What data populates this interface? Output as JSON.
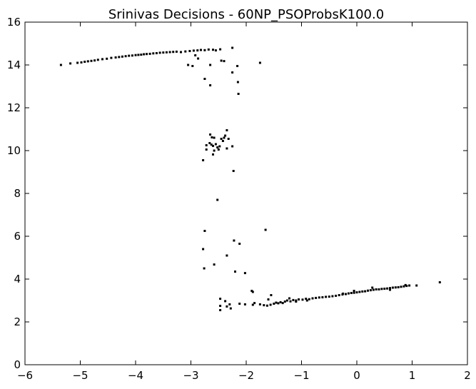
{
  "chart_data": {
    "type": "scatter",
    "title": "Srinivas Decisions - 60NP_PSOProbsK100.0",
    "xlabel": "",
    "ylabel": "",
    "xlim": [
      -6,
      2
    ],
    "ylim": [
      0,
      16
    ],
    "grid": false,
    "legend": false,
    "x_ticks": [
      -6,
      -5,
      -4,
      -3,
      -2,
      -1,
      0,
      1,
      2
    ],
    "x_tick_labels": [
      "−6",
      "−5",
      "−4",
      "−3",
      "−2",
      "−1",
      "0",
      "1",
      "2"
    ],
    "y_ticks": [
      0,
      2,
      4,
      6,
      8,
      10,
      12,
      14,
      16
    ],
    "y_tick_labels": [
      "0",
      "2",
      "4",
      "6",
      "8",
      "10",
      "12",
      "14",
      "16"
    ],
    "marker_color": "#000000",
    "series": [
      {
        "name": "decisions",
        "points": [
          [
            -5.35,
            14.0
          ],
          [
            -5.18,
            14.07
          ],
          [
            -5.05,
            14.1
          ],
          [
            -4.98,
            14.12
          ],
          [
            -4.92,
            14.15
          ],
          [
            -4.86,
            14.17
          ],
          [
            -4.8,
            14.19
          ],
          [
            -4.74,
            14.21
          ],
          [
            -4.68,
            14.24
          ],
          [
            -4.6,
            14.27
          ],
          [
            -4.52,
            14.29
          ],
          [
            -4.44,
            14.33
          ],
          [
            -4.36,
            14.35
          ],
          [
            -4.3,
            14.37
          ],
          [
            -4.24,
            14.39
          ],
          [
            -4.18,
            14.41
          ],
          [
            -4.12,
            14.43
          ],
          [
            -4.06,
            14.44
          ],
          [
            -4.0,
            14.46
          ],
          [
            -3.95,
            14.47
          ],
          [
            -3.9,
            14.48
          ],
          [
            -3.85,
            14.5
          ],
          [
            -3.8,
            14.51
          ],
          [
            -3.74,
            14.52
          ],
          [
            -3.68,
            14.54
          ],
          [
            -3.62,
            14.55
          ],
          [
            -3.56,
            14.57
          ],
          [
            -3.5,
            14.58
          ],
          [
            -3.44,
            14.59
          ],
          [
            -3.38,
            14.6
          ],
          [
            -3.32,
            14.61
          ],
          [
            -3.26,
            14.62
          ],
          [
            -3.18,
            14.6
          ],
          [
            -3.1,
            14.63
          ],
          [
            -3.02,
            14.65
          ],
          [
            -2.95,
            14.67
          ],
          [
            -2.88,
            14.68
          ],
          [
            -2.82,
            14.7
          ],
          [
            -2.75,
            14.69
          ],
          [
            -2.68,
            14.72
          ],
          [
            -2.6,
            14.71
          ],
          [
            -2.55,
            14.68
          ],
          [
            -2.47,
            14.73
          ],
          [
            -2.25,
            14.8
          ],
          [
            -2.92,
            14.45
          ],
          [
            -2.87,
            14.3
          ],
          [
            -2.45,
            14.2
          ],
          [
            -2.4,
            14.18
          ],
          [
            -2.65,
            14.0
          ],
          [
            -2.16,
            13.95
          ],
          [
            -3.05,
            14.0
          ],
          [
            -2.97,
            13.95
          ],
          [
            -1.75,
            14.1
          ],
          [
            -2.25,
            13.65
          ],
          [
            -2.75,
            13.35
          ],
          [
            -2.15,
            13.2
          ],
          [
            -2.65,
            13.05
          ],
          [
            -2.14,
            12.65
          ],
          [
            -2.65,
            10.75
          ],
          [
            -2.62,
            10.62
          ],
          [
            -2.58,
            10.6
          ],
          [
            -2.45,
            10.55
          ],
          [
            -2.4,
            10.6
          ],
          [
            -2.38,
            10.7
          ],
          [
            -2.35,
            10.95
          ],
          [
            -2.32,
            10.55
          ],
          [
            -2.72,
            10.25
          ],
          [
            -2.66,
            10.35
          ],
          [
            -2.63,
            10.28
          ],
          [
            -2.6,
            10.22
          ],
          [
            -2.55,
            10.3
          ],
          [
            -2.52,
            10.15
          ],
          [
            -2.5,
            10.05
          ],
          [
            -2.48,
            10.2
          ],
          [
            -2.72,
            10.05
          ],
          [
            -2.58,
            10.0
          ],
          [
            -2.42,
            10.45
          ],
          [
            -2.35,
            10.1
          ],
          [
            -2.25,
            10.2
          ],
          [
            -2.6,
            9.82
          ],
          [
            -2.78,
            9.55
          ],
          [
            -2.23,
            9.05
          ],
          [
            -2.52,
            7.7
          ],
          [
            -2.75,
            6.25
          ],
          [
            -1.65,
            6.3
          ],
          [
            -2.22,
            5.8
          ],
          [
            -2.12,
            5.65
          ],
          [
            -2.78,
            5.4
          ],
          [
            -2.35,
            5.1
          ],
          [
            -2.58,
            4.68
          ],
          [
            -2.76,
            4.5
          ],
          [
            -2.2,
            4.35
          ],
          [
            -2.02,
            4.28
          ],
          [
            -1.9,
            3.45
          ],
          [
            -1.88,
            3.4
          ],
          [
            -2.47,
            3.08
          ],
          [
            -2.38,
            2.97
          ],
          [
            -2.3,
            2.82
          ],
          [
            -2.47,
            2.75
          ],
          [
            -2.35,
            2.72
          ],
          [
            -2.28,
            2.63
          ],
          [
            -2.47,
            2.55
          ],
          [
            -2.12,
            2.85
          ],
          [
            -2.02,
            2.82
          ],
          [
            -1.88,
            2.8
          ],
          [
            -1.85,
            2.88
          ],
          [
            -1.75,
            2.82
          ],
          [
            -1.68,
            2.78
          ],
          [
            -1.62,
            2.76
          ],
          [
            -1.56,
            2.8
          ],
          [
            -1.5,
            2.85
          ],
          [
            -1.46,
            2.9
          ],
          [
            -1.42,
            2.87
          ],
          [
            -1.38,
            2.92
          ],
          [
            -1.34,
            2.88
          ],
          [
            -1.3,
            2.95
          ],
          [
            -1.26,
            3.0
          ],
          [
            -1.2,
            2.96
          ],
          [
            -1.15,
            3.02
          ],
          [
            -1.1,
            3.0
          ],
          [
            -1.05,
            3.05
          ],
          [
            -0.98,
            3.04
          ],
          [
            -0.92,
            3.08
          ],
          [
            -0.86,
            3.06
          ],
          [
            -0.8,
            3.1
          ],
          [
            -0.74,
            3.12
          ],
          [
            -0.68,
            3.14
          ],
          [
            -0.62,
            3.15
          ],
          [
            -0.56,
            3.17
          ],
          [
            -0.5,
            3.18
          ],
          [
            -0.44,
            3.2
          ],
          [
            -0.38,
            3.22
          ],
          [
            -0.32,
            3.25
          ],
          [
            -0.26,
            3.28
          ],
          [
            -0.2,
            3.3
          ],
          [
            -0.15,
            3.33
          ],
          [
            -0.1,
            3.35
          ],
          [
            -0.05,
            3.36
          ],
          [
            0.0,
            3.38
          ],
          [
            0.05,
            3.4
          ],
          [
            0.1,
            3.42
          ],
          [
            0.15,
            3.43
          ],
          [
            0.2,
            3.46
          ],
          [
            0.25,
            3.48
          ],
          [
            0.3,
            3.5
          ],
          [
            0.35,
            3.52
          ],
          [
            0.4,
            3.52
          ],
          [
            0.45,
            3.54
          ],
          [
            0.5,
            3.55
          ],
          [
            0.55,
            3.56
          ],
          [
            0.6,
            3.58
          ],
          [
            0.65,
            3.6
          ],
          [
            0.7,
            3.61
          ],
          [
            0.75,
            3.62
          ],
          [
            0.8,
            3.64
          ],
          [
            0.85,
            3.66
          ],
          [
            0.9,
            3.68
          ],
          [
            0.95,
            3.7
          ],
          [
            1.08,
            3.7
          ],
          [
            1.5,
            3.85
          ],
          [
            -1.6,
            3.05
          ],
          [
            -1.55,
            3.25
          ],
          [
            -1.22,
            3.1
          ],
          [
            -0.05,
            3.45
          ],
          [
            0.28,
            3.6
          ],
          [
            0.88,
            3.72
          ],
          [
            0.6,
            3.5
          ],
          [
            -1.1,
            2.95
          ],
          [
            -0.9,
            3.0
          ],
          [
            -0.25,
            3.32
          ]
        ]
      }
    ]
  }
}
